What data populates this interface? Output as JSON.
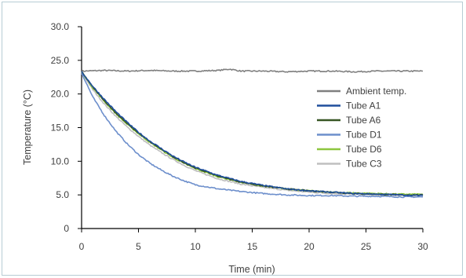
{
  "chart_data": {
    "type": "line",
    "title": "",
    "xlabel": "Time (min)",
    "ylabel": "Temperature (°C)",
    "xlim": [
      0,
      30
    ],
    "ylim": [
      0,
      30
    ],
    "xticks": [
      "0",
      "5",
      "10",
      "15",
      "20",
      "25",
      "30"
    ],
    "yticks": [
      "0",
      "5.0",
      "10.0",
      "15.0",
      "20.0",
      "25.0",
      "30.0"
    ],
    "grid": false,
    "legend_position": "right",
    "series": [
      {
        "name": "Ambient temp.",
        "color": "#7f7f7f",
        "x": [
          0,
          2,
          4,
          6,
          8,
          10,
          12,
          13,
          14,
          16,
          18,
          20,
          22,
          24,
          26,
          28,
          30
        ],
        "y": [
          23.4,
          23.5,
          23.4,
          23.5,
          23.4,
          23.4,
          23.5,
          23.7,
          23.4,
          23.4,
          23.3,
          23.4,
          23.4,
          23.3,
          23.4,
          23.4,
          23.4
        ]
      },
      {
        "name": "Tube A1",
        "color": "#1f4e9c",
        "x": [
          0,
          1,
          2,
          3,
          4,
          5,
          6,
          7,
          8,
          9,
          10,
          12,
          14,
          16,
          18,
          20,
          22,
          24,
          26,
          28,
          30
        ],
        "y": [
          23.3,
          21.1,
          19.2,
          17.4,
          15.8,
          14.3,
          13.0,
          11.9,
          10.8,
          9.9,
          9.1,
          7.9,
          7.0,
          6.4,
          5.9,
          5.6,
          5.4,
          5.2,
          5.1,
          5.0,
          4.9
        ]
      },
      {
        "name": "Tube A6",
        "color": "#375623",
        "x": [
          0,
          1,
          2,
          3,
          4,
          5,
          6,
          7,
          8,
          9,
          10,
          12,
          14,
          16,
          18,
          20,
          22,
          24,
          26,
          28,
          30
        ],
        "y": [
          23.3,
          21.0,
          19.0,
          17.2,
          15.6,
          14.2,
          12.9,
          11.8,
          10.7,
          9.8,
          9.0,
          7.8,
          6.9,
          6.3,
          5.9,
          5.6,
          5.4,
          5.2,
          5.1,
          5.0,
          5.0
        ]
      },
      {
        "name": "Tube D1",
        "color": "#6d8fcc",
        "x": [
          0,
          1,
          2,
          3,
          4,
          5,
          6,
          7,
          8,
          9,
          10,
          12,
          14,
          16,
          18,
          20,
          22,
          24,
          26,
          28,
          30
        ],
        "y": [
          23.1,
          19.5,
          16.8,
          14.5,
          12.6,
          11.0,
          9.7,
          8.7,
          7.8,
          7.1,
          6.5,
          5.9,
          5.5,
          5.2,
          5.0,
          4.9,
          4.9,
          4.8,
          4.8,
          4.7,
          4.7
        ]
      },
      {
        "name": "Tube D6",
        "color": "#8dc63f",
        "x": [
          0,
          1,
          2,
          3,
          4,
          5,
          6,
          7,
          8,
          9,
          10,
          12,
          14,
          16,
          18,
          20,
          22,
          24,
          26,
          28,
          30
        ],
        "y": [
          23.3,
          20.9,
          18.9,
          17.1,
          15.5,
          14.1,
          12.8,
          11.7,
          10.6,
          9.7,
          8.9,
          7.7,
          6.9,
          6.3,
          5.9,
          5.6,
          5.4,
          5.3,
          5.2,
          5.1,
          5.1
        ]
      },
      {
        "name": "Tube C3",
        "color": "#bfbfbf",
        "x": [
          0,
          1,
          2,
          3,
          4,
          5,
          6,
          7,
          8,
          9,
          10,
          12,
          14,
          16,
          18,
          20,
          22,
          24,
          26,
          28,
          30
        ],
        "y": [
          23.2,
          20.6,
          18.5,
          16.7,
          15.1,
          13.7,
          12.4,
          11.3,
          10.3,
          9.4,
          8.6,
          7.4,
          6.6,
          6.1,
          5.7,
          5.4,
          5.2,
          5.1,
          5.0,
          4.9,
          4.9
        ]
      }
    ]
  }
}
